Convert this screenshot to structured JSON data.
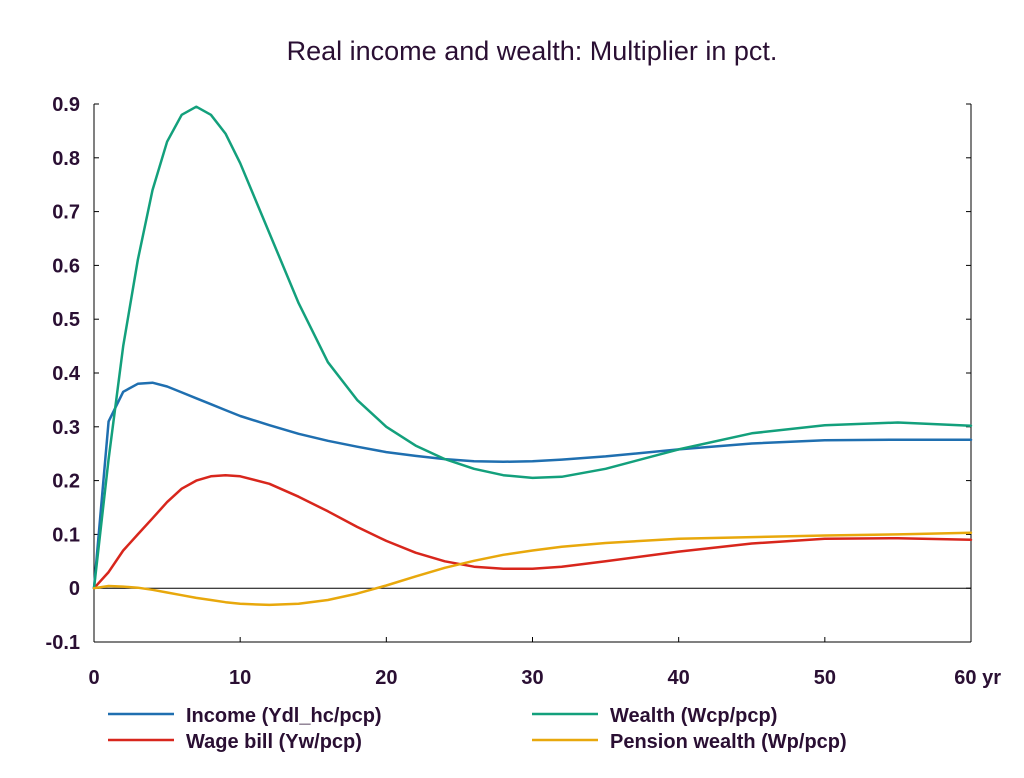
{
  "chart_data": {
    "type": "line",
    "title": "Real income and wealth: Multiplier in pct.",
    "xlabel": "",
    "ylabel": "",
    "x_unit_label": "yr",
    "xlim": [
      0,
      60
    ],
    "ylim": [
      -0.1,
      0.9
    ],
    "x_ticks": [
      0,
      10,
      20,
      30,
      40,
      50,
      60
    ],
    "x_tick_labels": [
      "0",
      "10",
      "20",
      "30",
      "40",
      "50",
      "60 yr"
    ],
    "y_ticks": [
      -0.1,
      0,
      0.1,
      0.2,
      0.3,
      0.4,
      0.5,
      0.6,
      0.7,
      0.8,
      0.9
    ],
    "y_tick_labels": [
      "-0.1",
      "0",
      "0.1",
      "0.2",
      "0.3",
      "0.4",
      "0.5",
      "0.6",
      "0.7",
      "0.8",
      "0.9"
    ],
    "grid": false,
    "zero_line": true,
    "legend_position": "bottom",
    "x": [
      0,
      1,
      2,
      3,
      4,
      5,
      6,
      7,
      8,
      9,
      10,
      12,
      14,
      16,
      18,
      20,
      22,
      24,
      26,
      28,
      30,
      32,
      35,
      40,
      45,
      50,
      55,
      60
    ],
    "series": [
      {
        "name": "Income (Ydl_hc/pcp)",
        "color": "#1f6fb0",
        "values": [
          0,
          0.31,
          0.365,
          0.38,
          0.382,
          0.375,
          0.364,
          0.353,
          0.342,
          0.331,
          0.32,
          0.303,
          0.287,
          0.274,
          0.263,
          0.253,
          0.246,
          0.24,
          0.236,
          0.235,
          0.236,
          0.239,
          0.245,
          0.258,
          0.269,
          0.275,
          0.276,
          0.276
        ]
      },
      {
        "name": "Wage bill (Yw/pcp)",
        "color": "#d8261c",
        "values": [
          0,
          0.03,
          0.07,
          0.1,
          0.13,
          0.16,
          0.185,
          0.2,
          0.208,
          0.21,
          0.208,
          0.194,
          0.17,
          0.143,
          0.114,
          0.088,
          0.066,
          0.05,
          0.04,
          0.036,
          0.036,
          0.04,
          0.05,
          0.068,
          0.083,
          0.092,
          0.093,
          0.09
        ]
      },
      {
        "name": "Wealth (Wcp/pcp)",
        "color": "#13a07c",
        "values": [
          0,
          0.24,
          0.45,
          0.61,
          0.74,
          0.83,
          0.88,
          0.895,
          0.88,
          0.845,
          0.79,
          0.66,
          0.53,
          0.42,
          0.35,
          0.3,
          0.265,
          0.24,
          0.222,
          0.21,
          0.205,
          0.207,
          0.222,
          0.258,
          0.288,
          0.303,
          0.308,
          0.302
        ]
      },
      {
        "name": "Pension wealth (Wp/pcp)",
        "color": "#e8a80c",
        "values": [
          0,
          0.004,
          0.003,
          0.001,
          -0.003,
          -0.008,
          -0.013,
          -0.018,
          -0.022,
          -0.026,
          -0.029,
          -0.031,
          -0.029,
          -0.022,
          -0.01,
          0.005,
          0.022,
          0.038,
          0.051,
          0.062,
          0.07,
          0.077,
          0.084,
          0.092,
          0.095,
          0.098,
          0.1,
          0.103
        ]
      }
    ]
  }
}
